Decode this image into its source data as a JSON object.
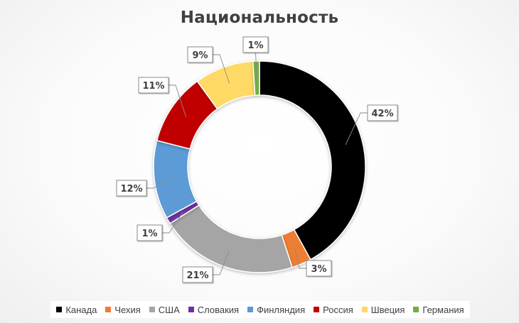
{
  "chart_data": {
    "type": "doughnut",
    "title": "Национальность",
    "labels": [
      "Канада",
      "Чехия",
      "США",
      "Словакия",
      "Финляндия",
      "Россия",
      "Швеция",
      "Германия"
    ],
    "values": [
      42,
      3,
      21,
      1,
      12,
      11,
      9,
      1
    ],
    "data_labels": [
      "42%",
      "3%",
      "21%",
      "1%",
      "12%",
      "11%",
      "9%",
      "1%"
    ],
    "colors": [
      "#000000",
      "#ED7D31",
      "#A5A5A5",
      "#7030A0",
      "#5B9BD5",
      "#C00000",
      "#FFD966",
      "#70AD47"
    ],
    "legend_position": "bottom"
  }
}
